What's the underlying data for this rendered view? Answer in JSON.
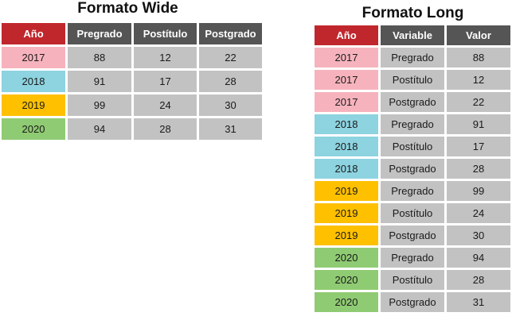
{
  "colors": {
    "year_header": "#c0272d",
    "header": "#555555",
    "cell": "#c2c2c2",
    "years": {
      "2017": "#f6b3bd",
      "2018": "#8dd3e0",
      "2019": "#ffc000",
      "2020": "#8fcb73"
    }
  },
  "wide": {
    "title": "Formato Wide",
    "headers": [
      "Año",
      "Pregrado",
      "Postítulo",
      "Postgrado"
    ],
    "rows": [
      {
        "year": "2017",
        "values": [
          "88",
          "12",
          "22"
        ]
      },
      {
        "year": "2018",
        "values": [
          "91",
          "17",
          "28"
        ]
      },
      {
        "year": "2019",
        "values": [
          "99",
          "24",
          "30"
        ]
      },
      {
        "year": "2020",
        "values": [
          "94",
          "28",
          "31"
        ]
      }
    ]
  },
  "long": {
    "title": "Formato Long",
    "headers": [
      "Año",
      "Variable",
      "Valor"
    ],
    "rows": [
      {
        "year": "2017",
        "variable": "Pregrado",
        "value": "88"
      },
      {
        "year": "2017",
        "variable": "Postítulo",
        "value": "12"
      },
      {
        "year": "2017",
        "variable": "Postgrado",
        "value": "22"
      },
      {
        "year": "2018",
        "variable": "Pregrado",
        "value": "91"
      },
      {
        "year": "2018",
        "variable": "Postítulo",
        "value": "17"
      },
      {
        "year": "2018",
        "variable": "Postgrado",
        "value": "28"
      },
      {
        "year": "2019",
        "variable": "Pregrado",
        "value": "99"
      },
      {
        "year": "2019",
        "variable": "Postítulo",
        "value": "24"
      },
      {
        "year": "2019",
        "variable": "Postgrado",
        "value": "30"
      },
      {
        "year": "2020",
        "variable": "Pregrado",
        "value": "94"
      },
      {
        "year": "2020",
        "variable": "Postítulo",
        "value": "28"
      },
      {
        "year": "2020",
        "variable": "Postgrado",
        "value": "31"
      }
    ]
  }
}
